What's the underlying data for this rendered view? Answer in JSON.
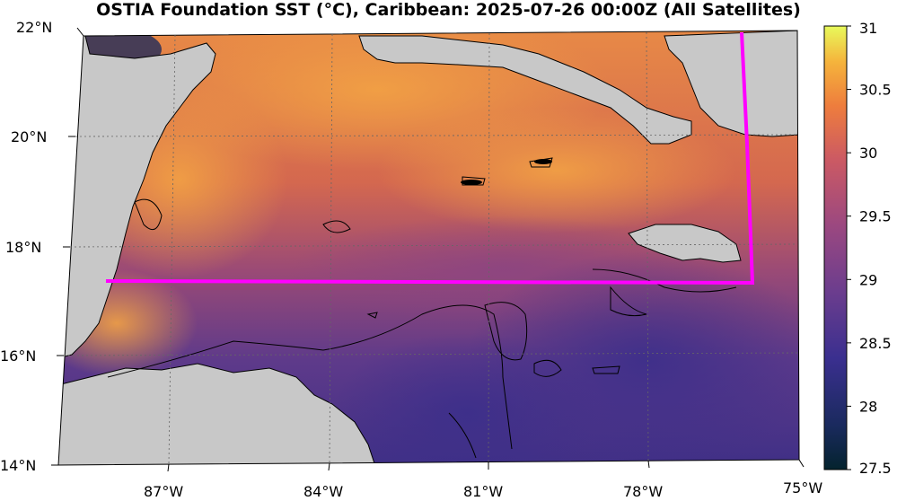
{
  "title": "OSTIA Foundation SST (°C), Caribbean: 2025-07-26 00:00Z (All Satellites)",
  "map": {
    "lat_labels": [
      "22°N",
      "20°N",
      "18°N",
      "16°N",
      "14°N"
    ],
    "lon_labels": [
      "87°W",
      "84°W",
      "81°W",
      "78°W",
      "75°W"
    ],
    "extent": {
      "lon_min": -89,
      "lon_max": -75,
      "lat_min": 14,
      "lat_max": 22
    },
    "land_color": "#c8c8c8",
    "boundary_color": "#ff00ff"
  },
  "colorbar": {
    "colormap": "thermal",
    "min": 27.5,
    "max": 31,
    "tick_labels": [
      "31",
      "30.5",
      "30",
      "29.5",
      "29",
      "28.5",
      "28",
      "27.5"
    ]
  }
}
